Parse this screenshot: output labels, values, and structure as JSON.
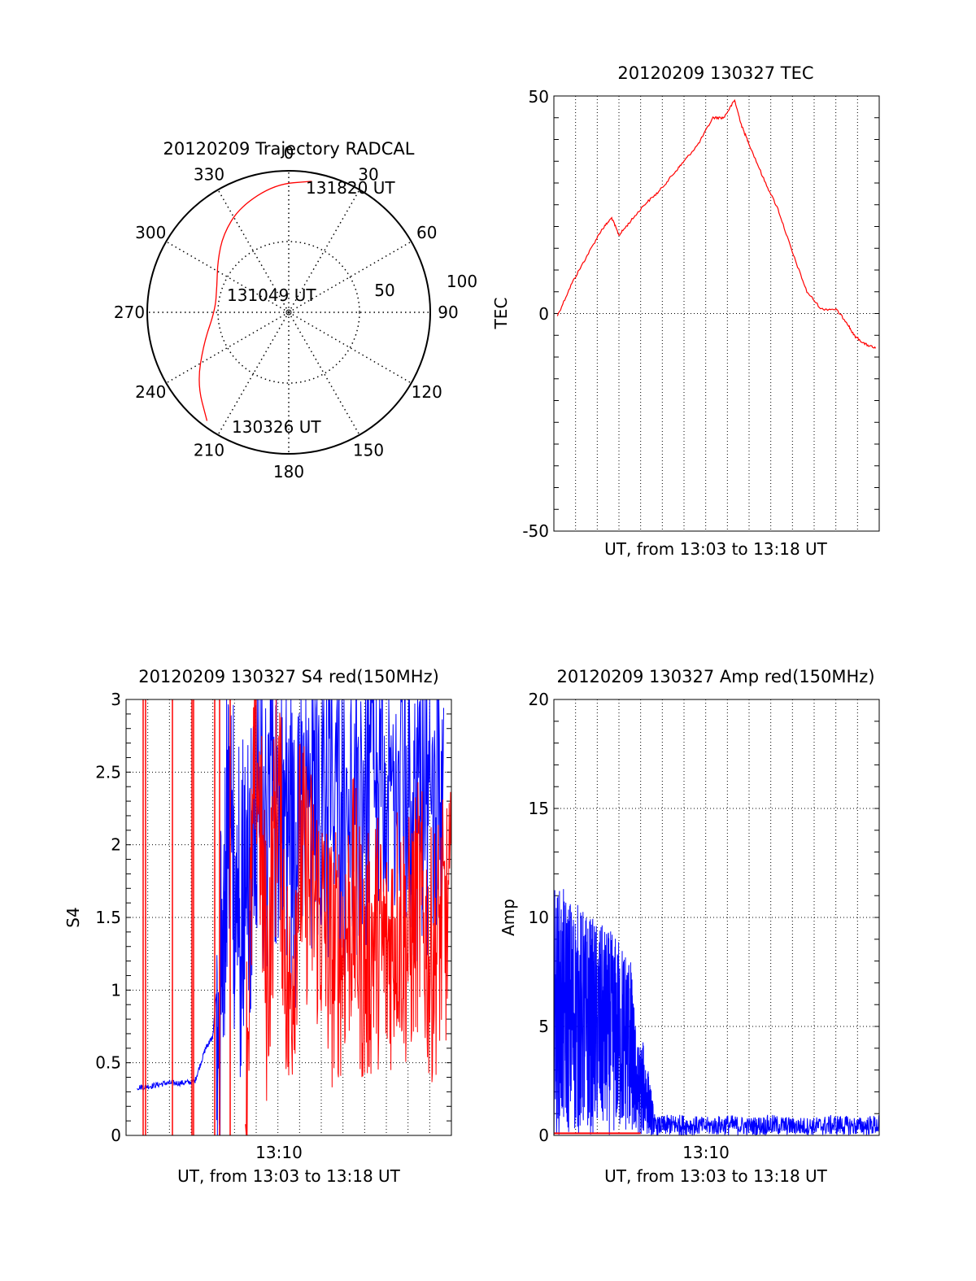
{
  "chart_data": [
    {
      "type": "polar",
      "title": "20120209 Trajectory RADCAL",
      "azimuth_labels": [
        "0",
        "30",
        "60",
        "90",
        "120",
        "150",
        "180",
        "210",
        "240",
        "270",
        "300",
        "330"
      ],
      "radial_labels": [
        "50",
        "100"
      ],
      "rlim": [
        0,
        100
      ],
      "grid": true,
      "series": [
        {
          "color": "#ff0000",
          "points": [
            {
              "az": 217,
              "r": 96
            },
            {
              "az": 232,
              "r": 82
            },
            {
              "az": 250,
              "r": 64
            },
            {
              "az": 272,
              "r": 52
            },
            {
              "az": 290,
              "r": 54
            },
            {
              "az": 306,
              "r": 62
            },
            {
              "az": 320,
              "r": 72
            },
            {
              "az": 335,
              "r": 82
            },
            {
              "az": 354,
              "r": 91
            },
            {
              "az": 10,
              "r": 94
            }
          ]
        }
      ],
      "annotations": [
        "131820 UT",
        "131049 UT",
        "130326 UT"
      ]
    },
    {
      "type": "line",
      "title": "20120209 130327 TEC",
      "xlabel": "UT, from 13:03 to 13:18 UT",
      "ylabel": "TEC",
      "xlim": [
        "13:03",
        "13:18"
      ],
      "ylim": [
        -50,
        50
      ],
      "yticks": [
        "-50",
        "0",
        "50"
      ],
      "grid": true,
      "series": [
        {
          "color": "#ff0000",
          "x": [
            "13:03:10",
            "13:03:50",
            "13:04:30",
            "13:05:10",
            "13:05:40",
            "13:06:00",
            "13:06:30",
            "13:07:10",
            "13:07:50",
            "13:08:30",
            "13:09:00",
            "13:09:40",
            "13:10:20",
            "13:10:50",
            "13:11:20",
            "13:11:40",
            "13:12:00",
            "13:12:40",
            "13:13:20",
            "13:14:00",
            "13:14:40",
            "13:15:20",
            "13:16:00",
            "13:16:30",
            "13:16:50",
            "13:17:20",
            "13:17:50"
          ],
          "values": [
            -0.5,
            7,
            13,
            19,
            22,
            18,
            21,
            25,
            28,
            32,
            35,
            39,
            45,
            45,
            49,
            43,
            39,
            31,
            24,
            14,
            5,
            1,
            1,
            -2,
            -5,
            -7,
            -8
          ]
        }
      ]
    },
    {
      "type": "line",
      "title": "20120209 130327 S4 red(150MHz)",
      "xlabel": "UT, from 13:03 to 13:18 UT",
      "ylabel": "S4",
      "xlim": [
        "13:03",
        "13:18"
      ],
      "ylim": [
        0,
        3
      ],
      "yticks": [
        "0",
        "0.5",
        "1",
        "1.5",
        "2",
        "2.5",
        "3"
      ],
      "xticks": [
        "13:10"
      ],
      "grid": true,
      "series": [
        {
          "color": "#0000ff",
          "x": [
            "13:03:30",
            "13:04:10",
            "13:04:50",
            "13:05:30",
            "13:06:10",
            "13:06:40",
            "13:07:00",
            "13:07:20",
            "13:07:40",
            "13:08:00",
            "13:08:30",
            "13:09:00",
            "13:09:30",
            "13:10:00",
            "13:10:30",
            "13:11:00",
            "13:11:40",
            "13:12:20",
            "13:13:00",
            "13:13:40",
            "13:14:20",
            "13:15:00",
            "13:15:40",
            "13:16:20",
            "13:17:00",
            "13:17:40"
          ],
          "values": [
            0.33,
            0.34,
            0.36,
            0.36,
            0.37,
            0.6,
            0.68,
            1.3,
            2.6,
            2.3,
            2.2,
            2.7,
            2.9,
            3.0,
            2.8,
            2.7,
            2.9,
            3.0,
            2.9,
            2.8,
            3.0,
            2.9,
            3.0,
            2.8,
            3.0,
            2.9
          ]
        },
        {
          "color": "#ff0000",
          "x": [
            "13:08:30",
            "13:09:00",
            "13:09:30",
            "13:10:00",
            "13:10:30",
            "13:11:00",
            "13:11:30",
            "13:12:00",
            "13:12:30",
            "13:13:00",
            "13:13:30",
            "13:14:00",
            "13:14:30",
            "13:15:00",
            "13:15:30",
            "13:16:00",
            "13:16:30",
            "13:17:00",
            "13:17:30",
            "13:18:00"
          ],
          "values": [
            0.2,
            2.8,
            1.0,
            2.5,
            0.8,
            1.9,
            1.7,
            1.5,
            1.2,
            1.3,
            1.6,
            1.1,
            1.4,
            1.2,
            1.5,
            1.3,
            1.6,
            1.2,
            1.4,
            1.5
          ]
        }
      ]
    },
    {
      "type": "line",
      "title": "20120209 130327 Amp red(150MHz)",
      "xlabel": "UT, from 13:03 to 13:18 UT",
      "ylabel": "Amp",
      "xlim": [
        "13:03",
        "13:18"
      ],
      "ylim": [
        0,
        20
      ],
      "yticks": [
        "0",
        "5",
        "10",
        "15",
        "20"
      ],
      "xticks": [
        "13:10"
      ],
      "grid": true,
      "series": [
        {
          "color": "#0000ff",
          "x": [
            "13:03:00",
            "13:03:30",
            "13:04:00",
            "13:04:30",
            "13:05:00",
            "13:05:30",
            "13:06:00",
            "13:06:30",
            "13:06:50",
            "13:07:10",
            "13:07:40",
            "13:08:20",
            "13:09:00",
            "13:10:00",
            "13:11:00",
            "13:12:00",
            "13:13:00",
            "13:14:00",
            "13:15:00",
            "13:16:00",
            "13:17:00",
            "13:18:00"
          ],
          "values": [
            9.6,
            9.4,
            9.0,
            8.6,
            8.2,
            7.9,
            7.6,
            7.2,
            3.5,
            3.6,
            0.7,
            0.8,
            0.8,
            0.7,
            0.8,
            0.7,
            0.8,
            0.7,
            0.7,
            0.8,
            0.7,
            0.8
          ]
        },
        {
          "color": "#ff0000",
          "x": [
            "13:03:00",
            "13:07:00"
          ],
          "values": [
            0.1,
            0.1
          ]
        }
      ]
    }
  ]
}
